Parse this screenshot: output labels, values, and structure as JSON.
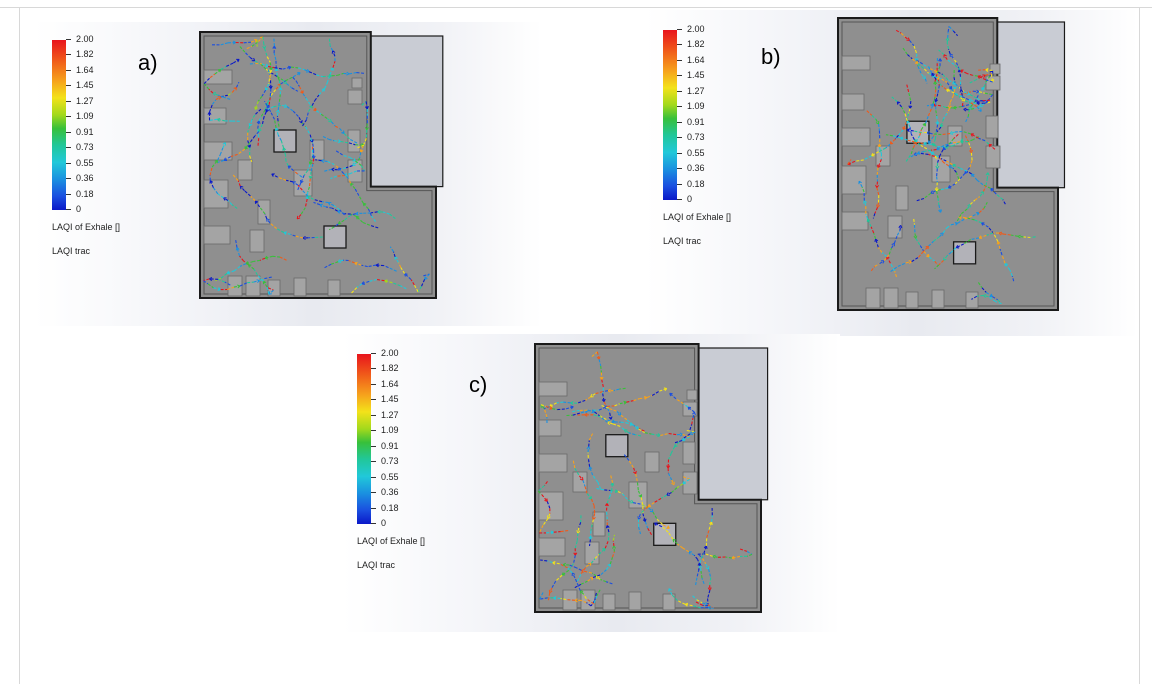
{
  "panels": [
    {
      "id": "a",
      "label": "a)"
    },
    {
      "id": "b",
      "label": "b)"
    },
    {
      "id": "c",
      "label": "c)"
    }
  ],
  "legend": {
    "ticks": [
      "2.00",
      "1.82",
      "1.64",
      "1.45",
      "1.27",
      "1.09",
      "0.91",
      "0.73",
      "0.55",
      "0.36",
      "0.18",
      "0"
    ],
    "title": "LAQI of Exhale  []",
    "subtitle": "LAQI trac"
  },
  "colors": {
    "floor": "#8f8f8f",
    "wall_outline": "#1a1a1a",
    "obstacle": "#a4a4a4",
    "scale": [
      "#0a18c8",
      "#1a4ee0",
      "#1a90e0",
      "#21c8d9",
      "#21c79a",
      "#38c03a",
      "#a3d91c",
      "#f3e21a",
      "#f6a21c",
      "#f05a1a",
      "#e8141c"
    ]
  }
}
